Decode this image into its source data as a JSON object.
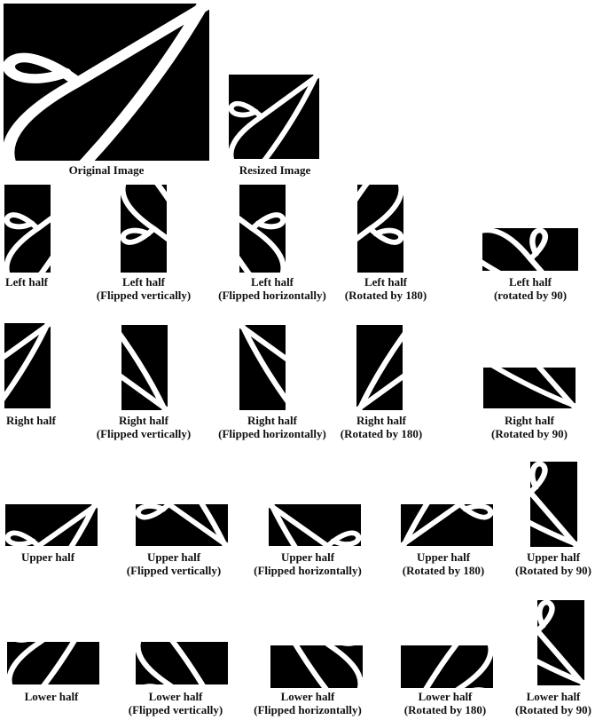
{
  "figure": {
    "original": {
      "caption": "Original Image"
    },
    "resized": {
      "caption": "Resized Image"
    },
    "rows": [
      {
        "name": "left",
        "items": [
          {
            "line1": "Left half",
            "line2": ""
          },
          {
            "line1": "Left half",
            "line2": "(Flipped vertically)"
          },
          {
            "line1": "Left half",
            "line2": "(Flipped horizontally)"
          },
          {
            "line1": "Left half",
            "line2": "(Rotated by 180)"
          },
          {
            "line1": "Left half",
            "line2": "(rotated by 90)"
          }
        ]
      },
      {
        "name": "right",
        "items": [
          {
            "line1": "Right half",
            "line2": ""
          },
          {
            "line1": "Right half",
            "line2": "(Flipped vertically)"
          },
          {
            "line1": "Right half",
            "line2": "(Flipped horizontally)"
          },
          {
            "line1": "Right half",
            "line2": "(Rotated by 180)"
          },
          {
            "line1": "Right half",
            "line2": "(Rotated by 90)"
          }
        ]
      },
      {
        "name": "upper",
        "items": [
          {
            "line1": "Upper half",
            "line2": ""
          },
          {
            "line1": "Upper half",
            "line2": "(Flipped vertically)"
          },
          {
            "line1": "Upper half",
            "line2": "(Flipped horizontally)"
          },
          {
            "line1": "Upper half",
            "line2": "(Rotated by 180)"
          },
          {
            "line1": "Upper half",
            "line2": "(Rotated by 90)"
          }
        ]
      },
      {
        "name": "lower",
        "items": [
          {
            "line1": "Lower half",
            "line2": ""
          },
          {
            "line1": "Lower half",
            "line2": "(Flipped vertically)"
          },
          {
            "line1": "Lower half",
            "line2": "(Flipped horizontally)"
          },
          {
            "line1": "Lower half",
            "line2": "(Rotated by 180)"
          },
          {
            "line1": "Lower half",
            "line2": "(Rotated by 90)"
          }
        ]
      }
    ]
  }
}
